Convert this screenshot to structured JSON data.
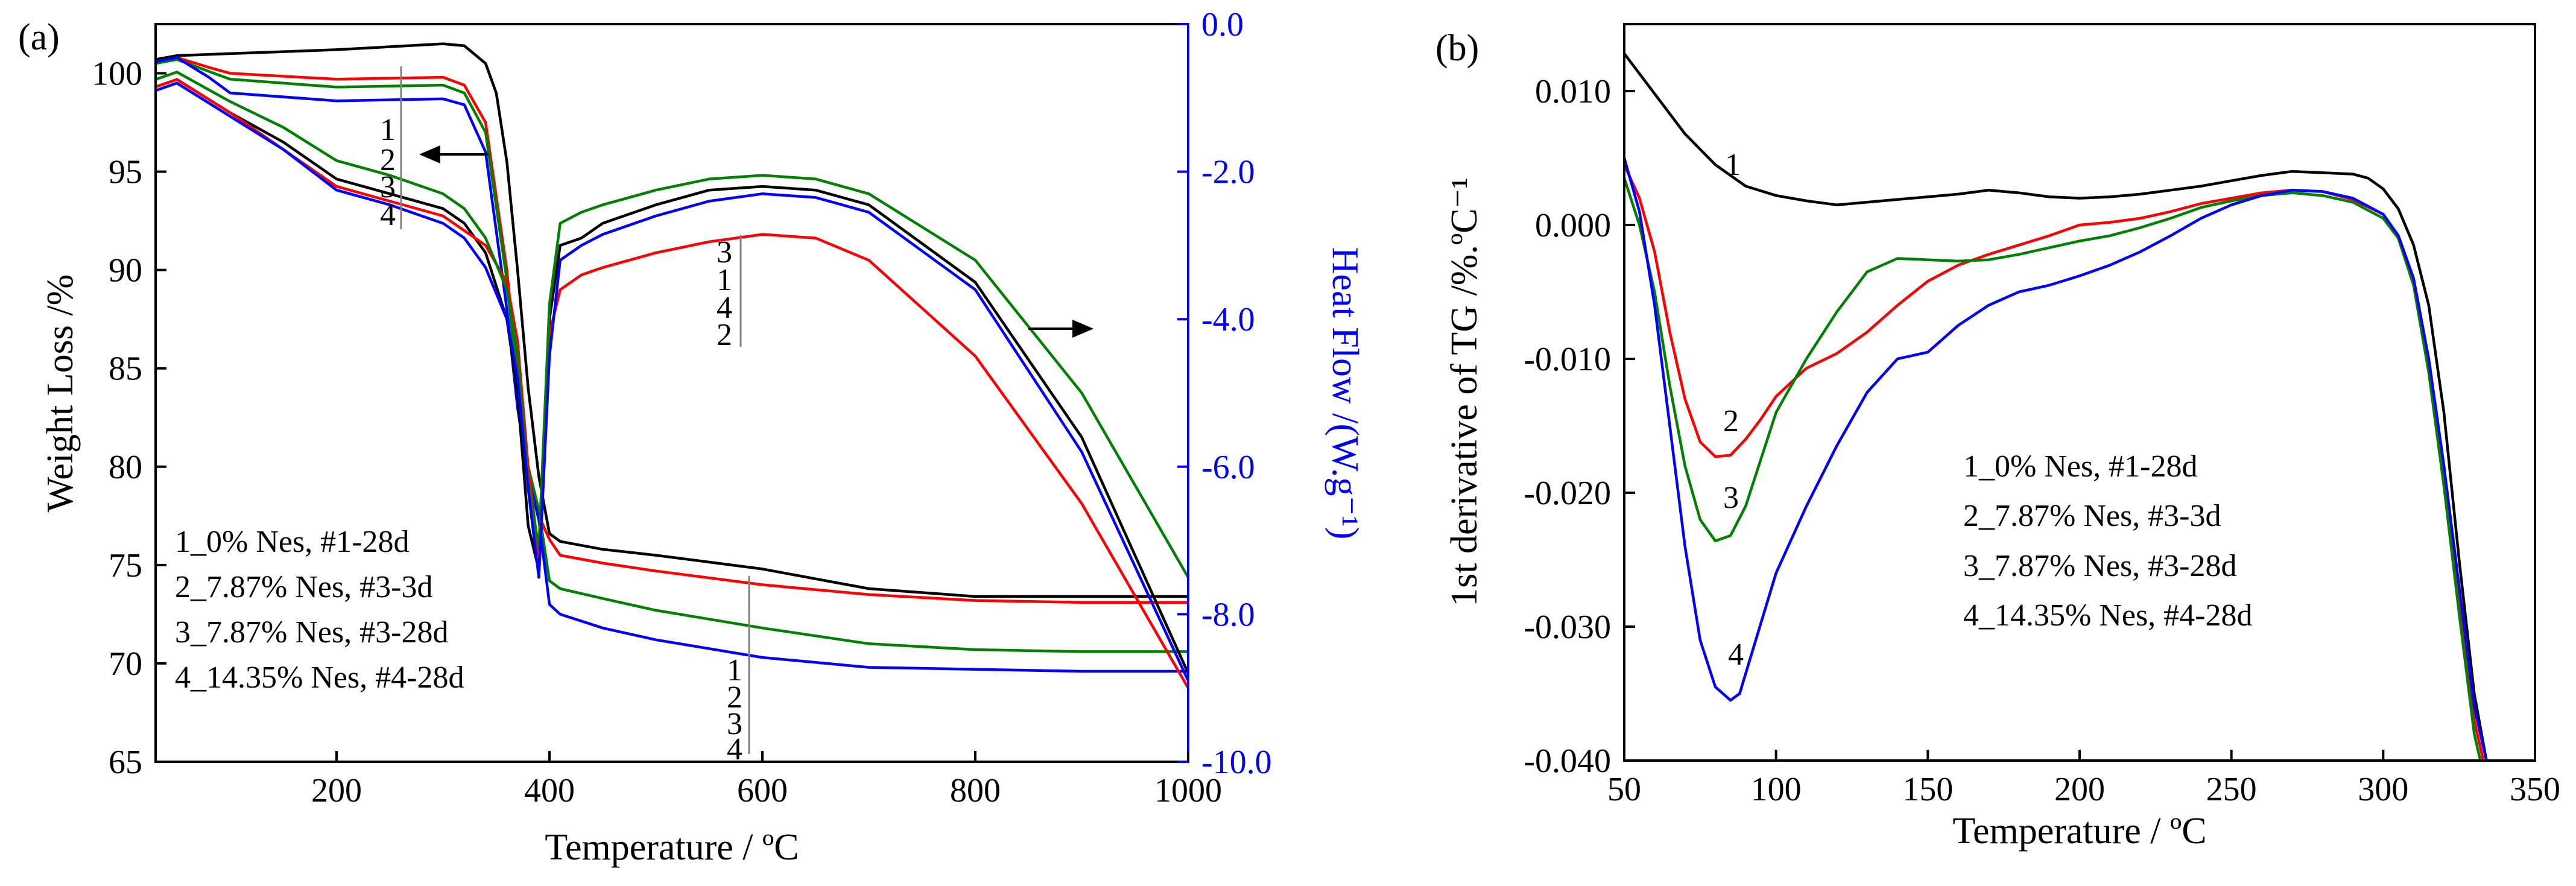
{
  "colors": {
    "black": "#000000",
    "red": "#ff0000",
    "green": "#008000",
    "blue": "#0000ff",
    "gray": "#808080"
  },
  "chart_data": [
    {
      "panel_label": "(a)",
      "type": "line",
      "title": "",
      "xlabel": "Temperature / ºC",
      "ylabel": "Weight Loss /%",
      "y2label": "Heat Flow /(W.g⁻¹)",
      "xlim": [
        30,
        1000
      ],
      "ylim": [
        65,
        102.5
      ],
      "y2lim": [
        -10,
        0
      ],
      "xticks": [
        200,
        400,
        600,
        800,
        1000
      ],
      "yticks": [
        65,
        70,
        75,
        80,
        85,
        90,
        95,
        100
      ],
      "y2ticks": [
        -10.0,
        -8.0,
        -6.0,
        -4.0,
        -2.0,
        0.0
      ],
      "y2ticklabels": [
        "-10.0",
        "-8.0",
        "-6.0",
        "-4.0",
        "-2.0",
        "0.0"
      ],
      "legend": [
        "1_0% Nes, #1-28d",
        "2_7.87% Nes, #3-3d",
        "3_7.87% Nes, #3-28d",
        "4_14.35% Nes, #4-28d"
      ],
      "legend_position": "bottom-left",
      "annotations": {
        "tg_stack_top": [
          "1",
          "2",
          "3",
          "4"
        ],
        "hf_stack": [
          "3",
          "1",
          "4",
          "2"
        ],
        "tg_stack_bottom": [
          "1",
          "2",
          "3",
          "4"
        ]
      },
      "series": [
        {
          "name": "1",
          "kind": "TG",
          "axis": "left",
          "color": "#000000",
          "x": [
            30,
            50,
            100,
            200,
            300,
            320,
            340,
            350,
            360,
            370,
            380,
            390,
            400,
            410,
            450,
            500,
            600,
            700,
            800,
            900,
            1000
          ],
          "y": [
            100.7,
            100.9,
            101.0,
            101.2,
            101.5,
            101.4,
            100.5,
            99.0,
            95.5,
            90.0,
            84.0,
            79.5,
            76.6,
            76.2,
            75.8,
            75.5,
            74.8,
            73.8,
            73.4,
            73.4,
            73.4
          ]
        },
        {
          "name": "2",
          "kind": "TG",
          "axis": "left",
          "color": "#ff0000",
          "x": [
            30,
            50,
            80,
            100,
            200,
            300,
            320,
            340,
            360,
            370,
            380,
            390,
            400,
            410,
            450,
            500,
            600,
            700,
            800,
            900,
            1000
          ],
          "y": [
            100.6,
            100.8,
            100.3,
            100.0,
            99.7,
            99.8,
            99.4,
            97.5,
            90.0,
            84.5,
            80.0,
            77.5,
            76.3,
            75.5,
            75.1,
            74.7,
            74.0,
            73.5,
            73.2,
            73.1,
            73.1
          ]
        },
        {
          "name": "3",
          "kind": "TG",
          "axis": "left",
          "color": "#008000",
          "x": [
            30,
            50,
            80,
            100,
            200,
            300,
            320,
            340,
            360,
            370,
            380,
            390,
            400,
            410,
            450,
            500,
            600,
            700,
            800,
            900,
            1000
          ],
          "y": [
            100.5,
            100.7,
            100.1,
            99.7,
            99.3,
            99.4,
            99.0,
            97.0,
            89.5,
            84.0,
            80.0,
            77.8,
            74.2,
            73.8,
            73.3,
            72.7,
            71.8,
            71.0,
            70.7,
            70.6,
            70.6
          ]
        },
        {
          "name": "4",
          "kind": "TG",
          "axis": "left",
          "color": "#0000ff",
          "x": [
            30,
            50,
            80,
            100,
            200,
            300,
            320,
            340,
            360,
            370,
            380,
            390,
            400,
            410,
            450,
            500,
            600,
            700,
            800,
            900,
            1000
          ],
          "y": [
            100.6,
            100.8,
            99.8,
            99.0,
            98.6,
            98.7,
            98.4,
            96.0,
            88.0,
            83.0,
            79.5,
            77.3,
            73.0,
            72.5,
            71.8,
            71.2,
            70.3,
            69.8,
            69.7,
            69.6,
            69.6
          ]
        },
        {
          "name": "1",
          "kind": "HF",
          "axis": "right",
          "color": "#000000",
          "x": [
            30,
            50,
            100,
            150,
            200,
            250,
            300,
            320,
            340,
            360,
            370,
            380,
            390,
            400,
            410,
            430,
            450,
            500,
            550,
            600,
            650,
            700,
            800,
            900,
            1000
          ],
          "y": [
            -0.85,
            -0.75,
            -1.2,
            -1.6,
            -2.1,
            -2.3,
            -2.5,
            -2.7,
            -3.1,
            -4.0,
            -5.0,
            -6.8,
            -7.4,
            -4.0,
            -3.0,
            -2.9,
            -2.7,
            -2.45,
            -2.25,
            -2.2,
            -2.25,
            -2.45,
            -3.5,
            -5.6,
            -8.8
          ]
        },
        {
          "name": "2",
          "kind": "HF",
          "axis": "right",
          "color": "#ff0000",
          "x": [
            30,
            50,
            100,
            150,
            200,
            250,
            300,
            320,
            340,
            360,
            370,
            380,
            390,
            400,
            410,
            430,
            450,
            500,
            550,
            600,
            650,
            700,
            800,
            900,
            1000
          ],
          "y": [
            -0.85,
            -0.75,
            -1.2,
            -1.7,
            -2.2,
            -2.4,
            -2.6,
            -2.8,
            -3.0,
            -3.5,
            -4.3,
            -6.0,
            -7.2,
            -4.2,
            -3.6,
            -3.4,
            -3.3,
            -3.1,
            -2.95,
            -2.85,
            -2.9,
            -3.2,
            -4.5,
            -6.5,
            -9.0
          ]
        },
        {
          "name": "3",
          "kind": "HF",
          "axis": "right",
          "color": "#008000",
          "x": [
            30,
            50,
            100,
            150,
            200,
            250,
            300,
            320,
            340,
            360,
            370,
            380,
            390,
            400,
            410,
            430,
            450,
            500,
            550,
            600,
            650,
            700,
            800,
            900,
            1000
          ],
          "y": [
            -0.75,
            -0.65,
            -1.05,
            -1.4,
            -1.85,
            -2.05,
            -2.3,
            -2.5,
            -2.9,
            -3.6,
            -4.5,
            -6.2,
            -7.1,
            -3.8,
            -2.7,
            -2.55,
            -2.45,
            -2.25,
            -2.1,
            -2.05,
            -2.1,
            -2.3,
            -3.2,
            -5.0,
            -7.5
          ]
        },
        {
          "name": "4",
          "kind": "HF",
          "axis": "right",
          "color": "#0000ff",
          "x": [
            30,
            50,
            100,
            150,
            200,
            250,
            300,
            320,
            340,
            360,
            370,
            380,
            390,
            400,
            410,
            430,
            450,
            500,
            550,
            600,
            650,
            700,
            800,
            900,
            1000
          ],
          "y": [
            -0.9,
            -0.8,
            -1.25,
            -1.7,
            -2.25,
            -2.45,
            -2.7,
            -2.9,
            -3.3,
            -4.0,
            -4.8,
            -6.3,
            -7.5,
            -4.5,
            -3.2,
            -3.0,
            -2.85,
            -2.6,
            -2.4,
            -2.3,
            -2.35,
            -2.55,
            -3.6,
            -5.8,
            -8.9
          ]
        }
      ]
    },
    {
      "panel_label": "(b)",
      "type": "line",
      "title": "",
      "xlabel": "Temperature / ºC",
      "ylabel": "1st derivative of TG /%.ºC⁻¹",
      "xlim": [
        50,
        350
      ],
      "ylim": [
        -0.04,
        0.015
      ],
      "xticks": [
        50,
        100,
        150,
        200,
        250,
        300,
        350
      ],
      "yticks": [
        -0.04,
        -0.03,
        -0.02,
        -0.01,
        0.0,
        0.01
      ],
      "yticklabels": [
        "-0.040",
        "-0.030",
        "-0.020",
        "-0.010",
        "0.000",
        "0.010"
      ],
      "legend": [
        "1_0% Nes, #1-28d",
        "2_7.87% Nes, #3-3d",
        "3_7.87% Nes, #3-28d",
        "4_14.35% Nes, #4-28d"
      ],
      "legend_position": "center-right",
      "series": [
        {
          "name": "1",
          "color": "#000000",
          "x": [
            50,
            60,
            70,
            80,
            90,
            100,
            110,
            120,
            130,
            140,
            150,
            160,
            170,
            180,
            190,
            200,
            210,
            220,
            230,
            240,
            250,
            260,
            270,
            280,
            290,
            295,
            300,
            305,
            310,
            315,
            320,
            325,
            330,
            334
          ],
          "y": [
            0.0128,
            0.0098,
            0.0068,
            0.0045,
            0.0029,
            0.0022,
            0.0018,
            0.0015,
            0.0017,
            0.0019,
            0.0021,
            0.0023,
            0.0026,
            0.0024,
            0.0021,
            0.002,
            0.0021,
            0.0023,
            0.0026,
            0.0029,
            0.0033,
            0.0037,
            0.004,
            0.0039,
            0.0038,
            0.0035,
            0.0027,
            0.0012,
            -0.0015,
            -0.006,
            -0.014,
            -0.025,
            -0.035,
            -0.04
          ]
        },
        {
          "name": "2",
          "color": "#ff0000",
          "x": [
            50,
            55,
            60,
            65,
            70,
            75,
            80,
            85,
            90,
            95,
            100,
            110,
            120,
            130,
            140,
            150,
            160,
            170,
            180,
            190,
            200,
            210,
            220,
            230,
            240,
            250,
            260,
            270,
            280,
            290,
            300,
            305,
            310,
            315,
            320,
            325,
            330,
            333
          ],
          "y": [
            0.0045,
            0.002,
            -0.002,
            -0.008,
            -0.013,
            -0.0162,
            -0.0173,
            -0.0172,
            -0.016,
            -0.0145,
            -0.0128,
            -0.0107,
            -0.0096,
            -0.008,
            -0.006,
            -0.0042,
            -0.003,
            -0.0022,
            -0.0015,
            -0.0008,
            0.0,
            0.0002,
            0.0005,
            0.001,
            0.0016,
            0.002,
            0.0024,
            0.0026,
            0.0025,
            0.0019,
            0.0008,
            -0.0008,
            -0.004,
            -0.01,
            -0.018,
            -0.028,
            -0.037,
            -0.04
          ]
        },
        {
          "name": "3",
          "color": "#008000",
          "x": [
            50,
            55,
            60,
            65,
            70,
            75,
            80,
            85,
            90,
            95,
            100,
            110,
            120,
            130,
            140,
            150,
            160,
            170,
            180,
            190,
            200,
            210,
            220,
            230,
            240,
            250,
            260,
            270,
            280,
            290,
            300,
            305,
            310,
            315,
            320,
            325,
            330,
            332
          ],
          "y": [
            0.0035,
            0.0,
            -0.005,
            -0.012,
            -0.018,
            -0.022,
            -0.0236,
            -0.0232,
            -0.021,
            -0.0175,
            -0.014,
            -0.01,
            -0.0065,
            -0.0035,
            -0.0025,
            -0.0026,
            -0.0027,
            -0.0026,
            -0.0022,
            -0.0017,
            -0.0012,
            -0.0008,
            -0.0002,
            0.0005,
            0.0013,
            0.0018,
            0.0022,
            0.0024,
            0.0022,
            0.0017,
            0.0005,
            -0.001,
            -0.0045,
            -0.011,
            -0.0195,
            -0.029,
            -0.038,
            -0.04
          ]
        },
        {
          "name": "4",
          "color": "#0000ff",
          "x": [
            50,
            55,
            60,
            65,
            70,
            75,
            80,
            85,
            88,
            92,
            96,
            100,
            110,
            120,
            130,
            140,
            150,
            160,
            170,
            180,
            190,
            200,
            210,
            220,
            230,
            240,
            250,
            260,
            270,
            280,
            290,
            300,
            305,
            310,
            315,
            320,
            325,
            330,
            334
          ],
          "y": [
            0.005,
            0.001,
            -0.006,
            -0.015,
            -0.024,
            -0.031,
            -0.0345,
            -0.0355,
            -0.035,
            -0.032,
            -0.029,
            -0.026,
            -0.021,
            -0.0165,
            -0.0125,
            -0.01,
            -0.0095,
            -0.0075,
            -0.006,
            -0.005,
            -0.0045,
            -0.0038,
            -0.003,
            -0.002,
            -0.0008,
            0.0005,
            0.0015,
            0.0022,
            0.0026,
            0.0025,
            0.002,
            0.0008,
            -0.0008,
            -0.004,
            -0.01,
            -0.018,
            -0.027,
            -0.036,
            -0.04
          ]
        }
      ]
    }
  ]
}
